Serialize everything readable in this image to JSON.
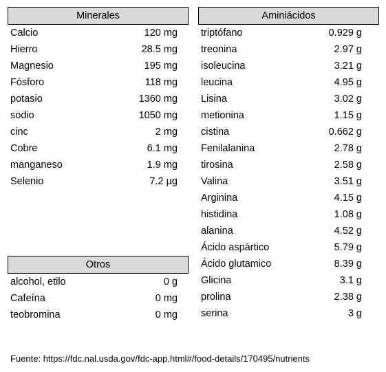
{
  "minerales": {
    "title": "Minerales",
    "rows": [
      {
        "name": "Calcio",
        "value": "120 mg"
      },
      {
        "name": "Hierro",
        "value": "28.5 mg"
      },
      {
        "name": "Magnesio",
        "value": "195 mg"
      },
      {
        "name": "Fósforo",
        "value": "118 mg"
      },
      {
        "name": "potasio",
        "value": "1360 mg"
      },
      {
        "name": "sodio",
        "value": "1050 mg"
      },
      {
        "name": "cinc",
        "value": "2 mg"
      },
      {
        "name": "Cobre",
        "value": "6.1 mg"
      },
      {
        "name": "manganeso",
        "value": "1.9 mg"
      },
      {
        "name": "Selenio",
        "value": "7.2 µg"
      }
    ]
  },
  "aminoacidos": {
    "title": "Aminiácidos",
    "rows": [
      {
        "name": "triptófano",
        "value": "0.929 g"
      },
      {
        "name": "treonina",
        "value": "2.97 g"
      },
      {
        "name": "isoleucina",
        "value": "3.21 g"
      },
      {
        "name": "leucina",
        "value": "4.95 g"
      },
      {
        "name": "Lisina",
        "value": "3.02 g"
      },
      {
        "name": "metionina",
        "value": "1.15 g"
      },
      {
        "name": "cistina",
        "value": "0.662 g"
      },
      {
        "name": "Fenilalanina",
        "value": "2.78 g"
      },
      {
        "name": "tirosina",
        "value": "2.58 g"
      },
      {
        "name": "Valina",
        "value": "3.51 g"
      },
      {
        "name": "Arginina",
        "value": "4.15 g"
      },
      {
        "name": "histidina",
        "value": "1.08 g"
      },
      {
        "name": "alanina",
        "value": "4.52 g"
      },
      {
        "name": "Ácido aspártico",
        "value": "5.79 g"
      },
      {
        "name": "Ácido glutamico",
        "value": "8.39 g"
      },
      {
        "name": "Glicina",
        "value": "3.1 g"
      },
      {
        "name": "prolina",
        "value": "2.38 g"
      },
      {
        "name": "serina",
        "value": "3 g"
      }
    ]
  },
  "otros": {
    "title": "Otros",
    "rows": [
      {
        "name": "alcohol, etilo",
        "value": "0 g"
      },
      {
        "name": "Cafeína",
        "value": "0 mg"
      },
      {
        "name": "teobromina",
        "value": "0 mg"
      }
    ]
  },
  "source": "Fuente: https://fdc.nal.usda.gov/fdc-app.html#/food-details/170495/nutrients"
}
